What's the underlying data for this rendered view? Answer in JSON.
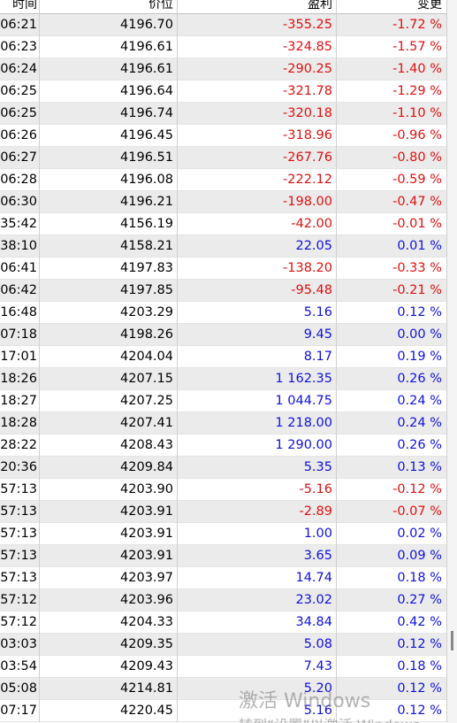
{
  "table": {
    "header": [
      "时间",
      "价位",
      "盈利",
      "变更"
    ],
    "negative_color": "#e01010",
    "positive_color": "#1010e0",
    "rows": [
      [
        "06:21",
        "4196.70",
        "-355.25",
        "-1.72 %"
      ],
      [
        "06:23",
        "4196.61",
        "-324.85",
        "-1.57 %"
      ],
      [
        "06:24",
        "4196.61",
        "-290.25",
        "-1.40 %"
      ],
      [
        "06:25",
        "4196.64",
        "-321.78",
        "-1.29 %"
      ],
      [
        "06:25",
        "4196.74",
        "-320.18",
        "-1.10 %"
      ],
      [
        "06:26",
        "4196.45",
        "-318.96",
        "-0.96 %"
      ],
      [
        "06:27",
        "4196.51",
        "-267.76",
        "-0.80 %"
      ],
      [
        "06:28",
        "4196.08",
        "-222.12",
        "-0.59 %"
      ],
      [
        "06:30",
        "4196.21",
        "-198.00",
        "-0.47 %"
      ],
      [
        "35:42",
        "4156.19",
        "-42.00",
        "-0.01 %"
      ],
      [
        "38:10",
        "4158.21",
        "22.05",
        "0.01 %"
      ],
      [
        "06:41",
        "4197.83",
        "-138.20",
        "-0.33 %"
      ],
      [
        "06:42",
        "4197.85",
        "-95.48",
        "-0.21 %"
      ],
      [
        "16:48",
        "4203.29",
        "5.16",
        "0.12 %"
      ],
      [
        "07:18",
        "4198.26",
        "9.45",
        "0.00 %"
      ],
      [
        "17:01",
        "4204.04",
        "8.17",
        "0.19 %"
      ],
      [
        "18:26",
        "4207.15",
        "1 162.35",
        "0.26 %"
      ],
      [
        "18:27",
        "4207.25",
        "1 044.75",
        "0.24 %"
      ],
      [
        "18:28",
        "4207.41",
        "1 218.00",
        "0.24 %"
      ],
      [
        "28:22",
        "4208.43",
        "1 290.00",
        "0.26 %"
      ],
      [
        "20:36",
        "4209.84",
        "5.35",
        "0.13 %"
      ],
      [
        "57:13",
        "4203.90",
        "-5.16",
        "-0.12 %"
      ],
      [
        "57:13",
        "4203.91",
        "-2.89",
        "-0.07 %"
      ],
      [
        "57:13",
        "4203.91",
        "1.00",
        "0.02 %"
      ],
      [
        "57:13",
        "4203.91",
        "3.65",
        "0.09 %"
      ],
      [
        "57:13",
        "4203.97",
        "14.74",
        "0.18 %"
      ],
      [
        "57:12",
        "4203.96",
        "23.02",
        "0.27 %"
      ],
      [
        "57:12",
        "4204.33",
        "34.84",
        "0.42 %"
      ],
      [
        "03:03",
        "4209.35",
        "5.08",
        "0.12 %"
      ],
      [
        "03:54",
        "4209.43",
        "7.43",
        "0.18 %"
      ],
      [
        "05:08",
        "4214.81",
        "5.20",
        "0.12 %"
      ],
      [
        "07:17",
        "4220.45",
        "5.16",
        "0.12 %"
      ]
    ]
  },
  "watermark": {
    "line1": "激活 Windows",
    "line2": "转到“设置”以激活 Windows"
  }
}
